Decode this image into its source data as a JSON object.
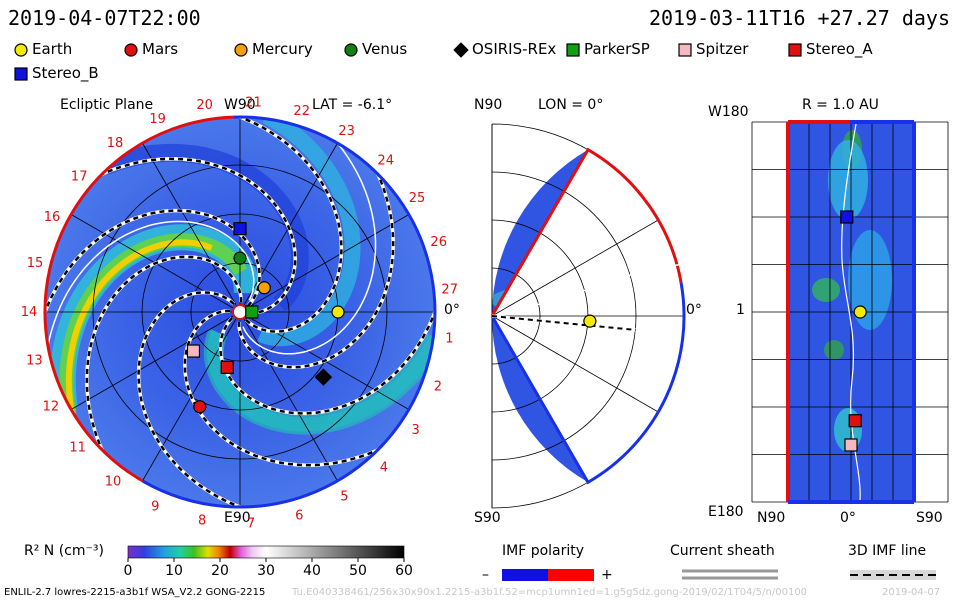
{
  "header": {
    "left_time": "2019-04-07T22:00",
    "right_info": "2019-03-11T16  +27.27 days"
  },
  "legend": {
    "items": [
      {
        "name": "Earth",
        "color": "#f2ea00",
        "shape": "circle"
      },
      {
        "name": "Mars",
        "color": "#e01010",
        "shape": "circle"
      },
      {
        "name": "Mercury",
        "color": "#f5a000",
        "shape": "circle"
      },
      {
        "name": "Venus",
        "color": "#108010",
        "shape": "circle"
      },
      {
        "name": "OSIRIS-REx",
        "color": "#000000",
        "shape": "diamond"
      },
      {
        "name": "ParkerSP",
        "color": "#10a010",
        "shape": "square"
      },
      {
        "name": "Spitzer",
        "color": "#f6b8c0",
        "shape": "square"
      },
      {
        "name": "Stereo_A",
        "color": "#e01010",
        "shape": "square"
      },
      {
        "name": "Stereo_B",
        "color": "#1010e0",
        "shape": "square"
      }
    ]
  },
  "panel_ecliptic": {
    "title": "Ecliptic Plane",
    "lat_label": "LAT = -6.1°",
    "top_label": "W90",
    "bottom_label": "E90",
    "right_label": "0°",
    "carrington_ticks": [
      "1",
      "2",
      "3",
      "4",
      "5",
      "6",
      "7",
      "8",
      "9",
      "10",
      "11",
      "12",
      "13",
      "14",
      "15",
      "16",
      "17",
      "18",
      "19",
      "20",
      "21",
      "22",
      "23",
      "24",
      "25",
      "26",
      "27"
    ]
  },
  "panel_meridional": {
    "title": "LON = 0°",
    "top_label": "N90",
    "bottom_label": "S90",
    "right_label": "0°"
  },
  "panel_radial": {
    "title": "R = 1.0 AU",
    "top_left": "W180",
    "mid_left": "1",
    "bottom_left": "E180",
    "x_left": "N90",
    "x_mid": "0°",
    "x_right": "S90"
  },
  "colorbar": {
    "label": "R² N (cm⁻³)",
    "ticks": [
      "0",
      "10",
      "20",
      "30",
      "40",
      "50",
      "60"
    ]
  },
  "imf": {
    "title": "IMF polarity",
    "minus": "–",
    "plus": "+"
  },
  "sheath": {
    "title": "Current sheath"
  },
  "imf3d": {
    "title": "3D IMF line"
  },
  "footer": {
    "model": "ENLIL-2.7 lowres-2215-a3b1f WSA_V2.2 GONG-2215",
    "run": "Tu.E040338461/256x30x90x1.2215-a3b1f.52=mcp1umn1ed=1.g5g5dz.gong-2019/02/1T04/5/n/00100",
    "stamp": "2019-04-07"
  },
  "chart_data": [
    {
      "type": "polar",
      "title": "Ecliptic Plane",
      "subtitle": "LAT = -6.1°",
      "variable": "R² N (cm⁻³)",
      "range": [
        0,
        60
      ],
      "bodies": [
        {
          "name": "Earth",
          "r_au": 1.0,
          "lon_deg": 0
        },
        {
          "name": "Mercury",
          "r_au": 0.35,
          "lon_deg": 45
        },
        {
          "name": "Venus",
          "r_au": 0.55,
          "lon_deg": 90
        },
        {
          "name": "Stereo_B",
          "r_au": 0.85,
          "lon_deg": 90
        },
        {
          "name": "ParkerSP",
          "r_au": 0.12,
          "lon_deg": 0
        },
        {
          "name": "OSIRIS-REx",
          "r_au": 1.08,
          "lon_deg": -38
        },
        {
          "name": "Spitzer",
          "r_au": 0.62,
          "lon_deg": -140
        },
        {
          "name": "Stereo_A",
          "r_au": 0.58,
          "lon_deg": -103
        },
        {
          "name": "Mars",
          "r_au": 1.05,
          "lon_deg": -113
        }
      ]
    },
    {
      "type": "polar",
      "title": "LON = 0°",
      "bodies": [
        {
          "name": "Earth",
          "r_au": 1.0,
          "lat_deg": -3
        }
      ]
    },
    {
      "type": "heatmap",
      "title": "R = 1.0 AU",
      "bodies": [
        {
          "name": "Stereo_B",
          "lat_deg": 3,
          "lon_deg": 90
        },
        {
          "name": "Earth",
          "lat_deg": -3,
          "lon_deg": 0
        },
        {
          "name": "Stereo_A",
          "lat_deg": -3,
          "lon_deg": -103
        },
        {
          "name": "Spitzer",
          "lat_deg": 0,
          "lon_deg": -126
        }
      ]
    }
  ]
}
